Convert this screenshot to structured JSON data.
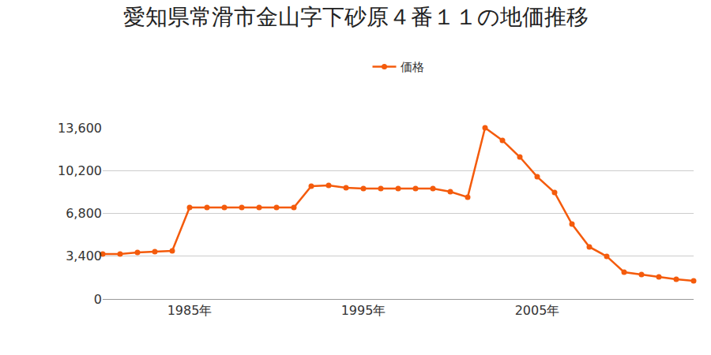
{
  "chart_data": {
    "type": "line",
    "title": "愛知県常滑市金山字下砂原４番１１の地価推移",
    "x": [
      1980,
      1981,
      1982,
      1983,
      1984,
      1985,
      1986,
      1987,
      1988,
      1989,
      1990,
      1991,
      1992,
      1993,
      1994,
      1995,
      1996,
      1997,
      1998,
      1999,
      2000,
      2001,
      2002,
      2003,
      2004,
      2005,
      2006,
      2007,
      2008,
      2009,
      2010,
      2011,
      2012,
      2013,
      2014
    ],
    "series": [
      {
        "name": "価格",
        "color": "#f45b0c",
        "marker": "circle",
        "line_style": "solid",
        "values": [
          3570,
          3570,
          3700,
          3760,
          3820,
          7270,
          7270,
          7270,
          7270,
          7270,
          7270,
          7270,
          8960,
          9030,
          8840,
          8780,
          8780,
          8780,
          8780,
          8780,
          8520,
          8090,
          13600,
          12600,
          11280,
          9710,
          8460,
          5950,
          4140,
          3390,
          2130,
          1940,
          1760,
          1570,
          1440
        ]
      }
    ],
    "xlim": [
      1980,
      2014
    ],
    "xticks": [
      {
        "value": 1985,
        "label": "1985年"
      },
      {
        "value": 1995,
        "label": "1995年"
      },
      {
        "value": 2005,
        "label": "2005年"
      }
    ],
    "ylim": [
      0,
      13600
    ],
    "yticks": [
      0,
      {
        "value": 3400,
        "label": "3,400"
      },
      {
        "value": 6800,
        "label": "6,800"
      },
      {
        "value": 10200,
        "label": "10,200"
      },
      {
        "value": 13600,
        "label": "13,600"
      }
    ],
    "grid": true,
    "legend": "top"
  }
}
